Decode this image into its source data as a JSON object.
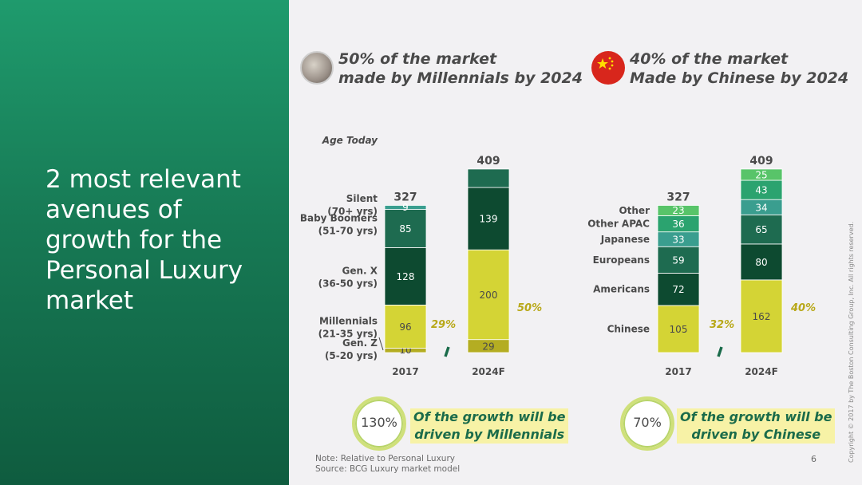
{
  "title": "2 most relevant\navenues of\ngrowth for the\nPersonal Luxury\nmarket",
  "left_header": {
    "line1": "50% of the market",
    "line2": "made by Millennials by 2024"
  },
  "right_header": {
    "line1": "40% of the market",
    "line2": "Made by Chinese by 2024"
  },
  "left_callout": {
    "percent": "130%",
    "text": "Of the growth will be\ndriven by Millennials"
  },
  "right_callout": {
    "percent": "70%",
    "text": "Of the growth will be\ndriven by Chinese"
  },
  "note": "Note: Relative to Personal Luxury",
  "source": "Source: BCG Luxury market model",
  "page_number": "6",
  "copyright": "Copyright © 2017 by The Boston Consulting Group, Inc. All rights reserved.",
  "colors": {
    "panel_green": "#1f9b6d",
    "silent": "#3a9e8f",
    "boomers": "#1e6b50",
    "genx": "#0d4a30",
    "millennials": "#d4d435",
    "genz": "#b4ad22",
    "pct": "#b8a818",
    "other": "#58c469",
    "other_apac": "#2ba36f",
    "japanese": "#3a9e8f",
    "europeans": "#1e6b50",
    "americans": "#0d4a30",
    "chinese": "#d4d435"
  },
  "chart_data": [
    {
      "type": "bar",
      "stacked": true,
      "categories": [
        "2017",
        "2024F"
      ],
      "totals": [
        "327",
        "409"
      ],
      "annotation": "Age Today",
      "series": [
        {
          "name": "Gen. Z",
          "sub": "(5-20 yrs)",
          "values": [
            10,
            29
          ],
          "value_labels": [
            "10",
            "29"
          ]
        },
        {
          "name": "Millennials",
          "sub": "(21-35 yrs)",
          "values": [
            96,
            200
          ],
          "value_labels": [
            "96",
            "200"
          ]
        },
        {
          "name": "Gen. X",
          "sub": "(36-50 yrs)",
          "values": [
            128,
            139
          ],
          "value_labels": [
            "128",
            "139"
          ]
        },
        {
          "name": "Baby Boomers",
          "sub": "(51-70 yrs)",
          "values": [
            85,
            41
          ],
          "value_labels": [
            "85",
            ""
          ]
        },
        {
          "name": "Silent",
          "sub": "(70+ yrs)",
          "values": [
            9,
            0
          ],
          "value_labels": [
            "9",
            ""
          ]
        }
      ],
      "share_labels": [
        "29%",
        "50%"
      ]
    },
    {
      "type": "bar",
      "stacked": true,
      "categories": [
        "2017",
        "2024F"
      ],
      "totals": [
        "327",
        "409"
      ],
      "series": [
        {
          "name": "Chinese",
          "values": [
            105,
            162
          ],
          "value_labels": [
            "105",
            "162"
          ]
        },
        {
          "name": "Americans",
          "values": [
            72,
            80
          ],
          "value_labels": [
            "72",
            "80"
          ]
        },
        {
          "name": "Europeans",
          "values": [
            59,
            65
          ],
          "value_labels": [
            "59",
            "65"
          ]
        },
        {
          "name": "Japanese",
          "values": [
            33,
            34
          ],
          "value_labels": [
            "33",
            "34"
          ]
        },
        {
          "name": "Other APAC",
          "values": [
            36,
            43
          ],
          "value_labels": [
            "36",
            "43"
          ]
        },
        {
          "name": "Other",
          "values": [
            23,
            25
          ],
          "value_labels": [
            "23",
            "25"
          ]
        }
      ],
      "share_labels": [
        "32%",
        "40%"
      ]
    }
  ]
}
